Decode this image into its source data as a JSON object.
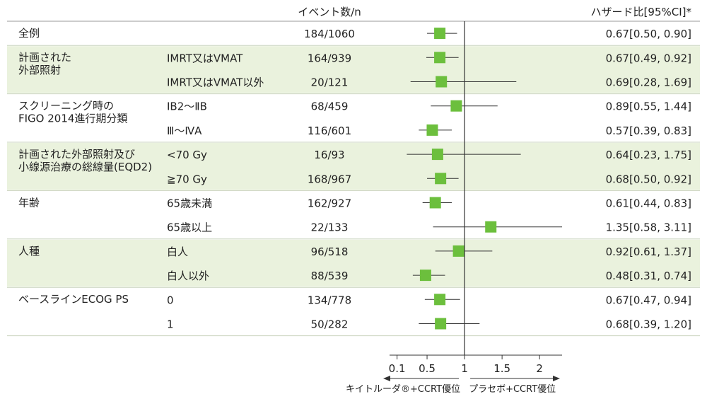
{
  "chart_data": {
    "type": "forest",
    "header": {
      "events": "イベント数/n",
      "hr": "ハザード比[95%CI]*"
    },
    "axis": {
      "ticks": [
        0.1,
        0.5,
        1,
        1.5,
        2
      ],
      "tick_labels": [
        "0.1",
        "0.5",
        "1",
        "1.5",
        "2"
      ],
      "reference": 1,
      "left_label": "キイトルーダ®+CCRT優位",
      "right_label": "プラセボ+CCRT優位"
    },
    "accent_color": "#6cbf3d",
    "band_color": "#eaf2dd",
    "groups": [
      {
        "label": [
          "全例"
        ],
        "shaded": false,
        "rows": [
          {
            "sub": "",
            "events": "184/1060",
            "hr": 0.67,
            "lo": 0.5,
            "hi": 0.9,
            "text": "0.67[0.50, 0.90]"
          }
        ]
      },
      {
        "label": [
          "計画された",
          "外部照射"
        ],
        "shaded": true,
        "rows": [
          {
            "sub": "IMRT又はVMAT",
            "events": "164/939",
            "hr": 0.67,
            "lo": 0.49,
            "hi": 0.92,
            "text": "0.67[0.49, 0.92]"
          },
          {
            "sub": "IMRT又はVMAT以外",
            "events": "20/121",
            "hr": 0.69,
            "lo": 0.28,
            "hi": 1.69,
            "text": "0.69[0.28, 1.69]"
          }
        ]
      },
      {
        "label": [
          "スクリーニング時の",
          "FIGO 2014進行期分類"
        ],
        "shaded": false,
        "rows": [
          {
            "sub": "ⅠB2～ⅡB",
            "events": "68/459",
            "hr": 0.89,
            "lo": 0.55,
            "hi": 1.44,
            "text": "0.89[0.55, 1.44]"
          },
          {
            "sub": "Ⅲ～ⅣA",
            "events": "116/601",
            "hr": 0.57,
            "lo": 0.39,
            "hi": 0.83,
            "text": "0.57[0.39, 0.83]"
          }
        ]
      },
      {
        "label": [
          "計画された外部照射及び",
          "小線源治療の総線量(EQD2)"
        ],
        "shaded": true,
        "rows": [
          {
            "sub": "<70 Gy",
            "events": "16/93",
            "hr": 0.64,
            "lo": 0.23,
            "hi": 1.75,
            "text": "0.64[0.23, 1.75]"
          },
          {
            "sub": "≧70 Gy",
            "events": "168/967",
            "hr": 0.68,
            "lo": 0.5,
            "hi": 0.92,
            "text": "0.68[0.50, 0.92]"
          }
        ]
      },
      {
        "label": [
          "年齢"
        ],
        "shaded": false,
        "rows": [
          {
            "sub": "65歳未満",
            "events": "162/927",
            "hr": 0.61,
            "lo": 0.44,
            "hi": 0.83,
            "text": "0.61[0.44, 0.83]"
          },
          {
            "sub": "65歳以上",
            "events": "22/133",
            "hr": 1.35,
            "lo": 0.58,
            "hi": 3.11,
            "text": "1.35[0.58, 3.11]"
          }
        ]
      },
      {
        "label": [
          "人種"
        ],
        "shaded": true,
        "rows": [
          {
            "sub": "白人",
            "events": "96/518",
            "hr": 0.92,
            "lo": 0.61,
            "hi": 1.37,
            "text": "0.92[0.61, 1.37]"
          },
          {
            "sub": "白人以外",
            "events": "88/539",
            "hr": 0.48,
            "lo": 0.31,
            "hi": 0.74,
            "text": "0.48[0.31, 0.74]"
          }
        ]
      },
      {
        "label": [
          "ベースラインECOG PS"
        ],
        "shaded": false,
        "rows": [
          {
            "sub": "0",
            "events": "134/778",
            "hr": 0.67,
            "lo": 0.47,
            "hi": 0.94,
            "text": "0.67[0.47, 0.94]"
          },
          {
            "sub": "1",
            "events": "50/282",
            "hr": 0.68,
            "lo": 0.39,
            "hi": 1.2,
            "text": "0.68[0.39, 1.20]"
          }
        ]
      }
    ]
  }
}
